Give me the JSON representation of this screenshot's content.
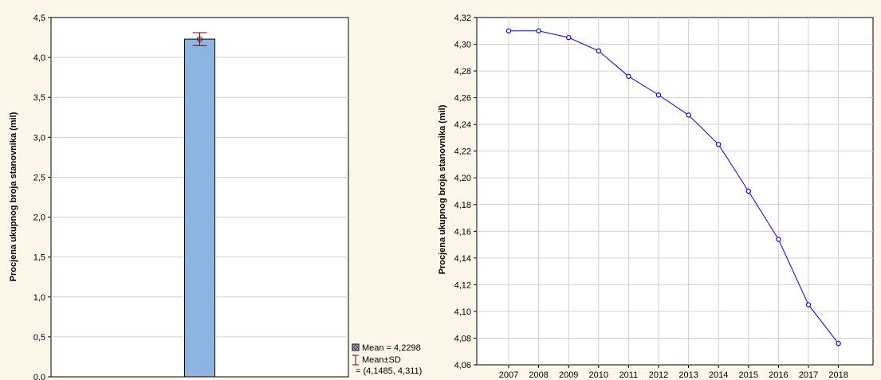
{
  "chart_data": [
    {
      "type": "bar",
      "title": "",
      "xlabel": "",
      "ylabel": "Procjena ukupnog broja stanovnika (mil)",
      "ylim": [
        0,
        4.5
      ],
      "y_ticks": [
        "0,0",
        "0,5",
        "1,0",
        "1,5",
        "2,0",
        "2,5",
        "3,0",
        "3,5",
        "4,0",
        "4,5"
      ],
      "grid": "horizontal",
      "bar_color": "#8db4e2",
      "errorbar_color": "#800000",
      "values": [
        4.2298
      ],
      "error": {
        "low": 4.1485,
        "high": 4.311
      },
      "legend": {
        "position": "bottom-right",
        "mean_label": "Mean = 4,2298",
        "sd_label_line1": "Mean±SD",
        "sd_label_line2": "= (4,1485, 4,311)"
      }
    },
    {
      "type": "line",
      "title": "",
      "xlabel": "",
      "ylabel": "Procjena ukupnog broja stanovnika (mil)",
      "ylim": [
        4.06,
        4.32
      ],
      "y_ticks": [
        "4,06",
        "4,08",
        "4,10",
        "4,12",
        "4,14",
        "4,16",
        "4,18",
        "4,20",
        "4,22",
        "4,24",
        "4,26",
        "4,28",
        "4,30",
        "4,32"
      ],
      "grid": "both",
      "line_color": "#0000ff",
      "x": [
        "2007",
        "2008",
        "2009",
        "2010",
        "2011",
        "2012",
        "2013",
        "2014",
        "2015",
        "2016",
        "2017",
        "2018"
      ],
      "values": [
        4.31,
        4.31,
        4.305,
        4.295,
        4.276,
        4.262,
        4.247,
        4.225,
        4.19,
        4.154,
        4.105,
        4.076
      ]
    }
  ]
}
